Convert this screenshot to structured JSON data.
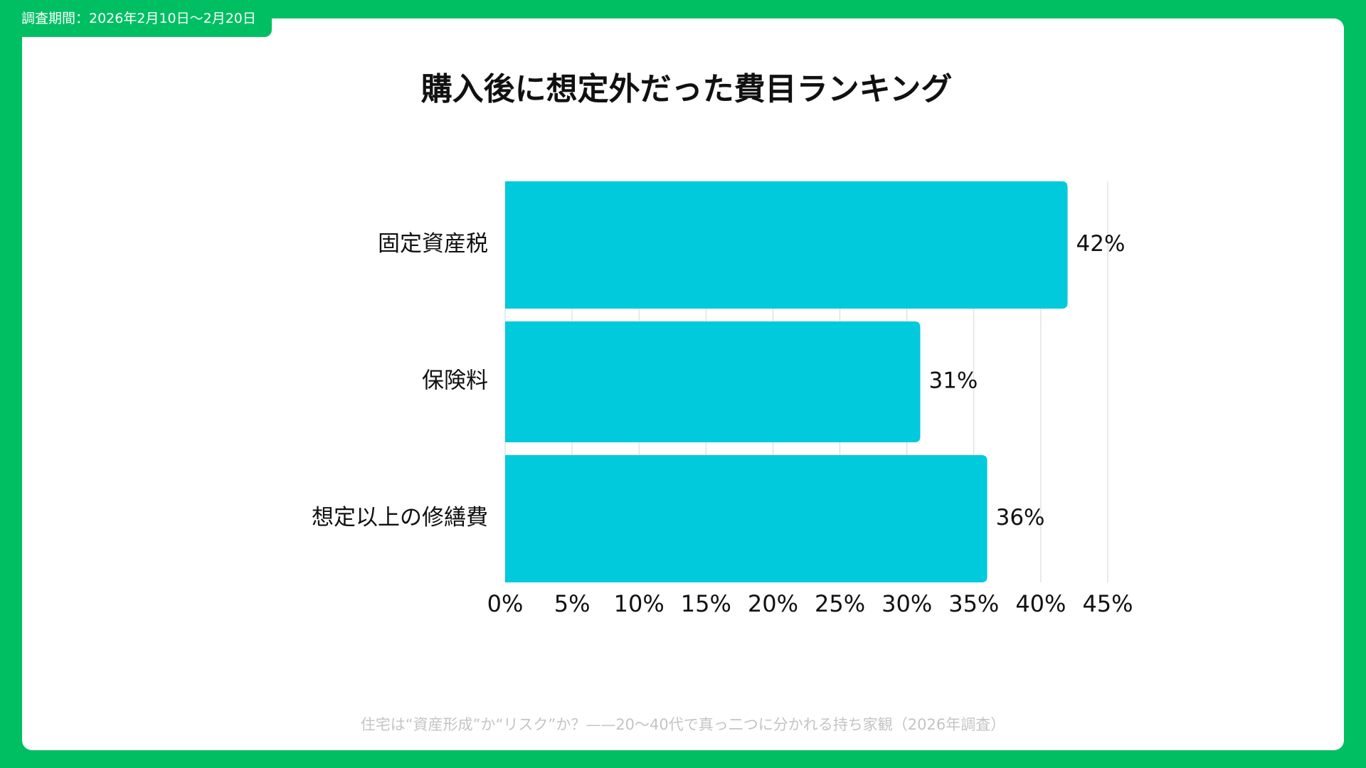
{
  "period": "調査期間：2026年2月10日〜2月20日",
  "footer": "住宅は“資産形成”か“リスク”か？——20〜40代で真っ二つに分かれる持ち家観（2026年調査）",
  "chart_data": {
    "type": "barh",
    "title": "購入後に想定外だった費目ランキング",
    "categories": [
      "固定資産税",
      "保険料",
      "想定以上の修繕費"
    ],
    "values": [
      42,
      31,
      36
    ],
    "value_labels": [
      "42%",
      "31%",
      "36%"
    ],
    "color": "#00cadc",
    "xlim": [
      0,
      45
    ],
    "xticks": [
      {
        "value": 0,
        "label": "0%"
      },
      {
        "value": 5,
        "label": "5%"
      },
      {
        "value": 10,
        "label": "10%"
      },
      {
        "value": 15,
        "label": "15%"
      },
      {
        "value": 20,
        "label": "20%"
      },
      {
        "value": 25,
        "label": "25%"
      },
      {
        "value": 30,
        "label": "30%"
      },
      {
        "value": 35,
        "label": "35%"
      },
      {
        "value": 40,
        "label": "40%"
      },
      {
        "value": 45,
        "label": "45%"
      }
    ],
    "grid": true
  }
}
